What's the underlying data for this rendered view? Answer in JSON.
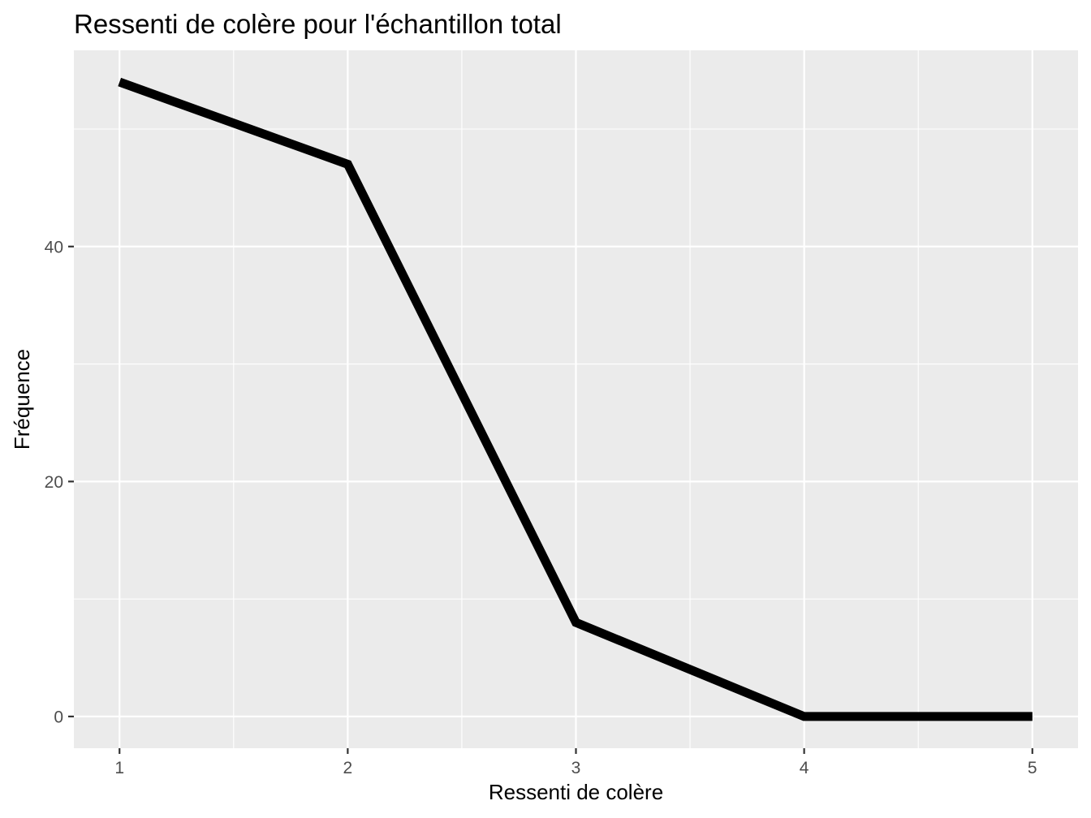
{
  "chart_data": {
    "type": "line",
    "title": "Ressenti de colère pour l'échantillon total",
    "xlabel": "Ressenti de colère",
    "ylabel": "Fréquence",
    "x": [
      1,
      2,
      3,
      4,
      5
    ],
    "series": [
      {
        "values": [
          54,
          47,
          8,
          0,
          0
        ],
        "color": "#000000"
      }
    ],
    "xlim": [
      0.8,
      5.2
    ],
    "ylim": [
      -2.7,
      56.7
    ],
    "x_ticks": [
      1,
      2,
      3,
      4,
      5
    ],
    "x_tick_labels": [
      "1",
      "2",
      "3",
      "4",
      "5"
    ],
    "x_minor_ticks": [
      1.5,
      2.5,
      3.5,
      4.5
    ],
    "y_ticks": [
      0,
      20,
      40
    ],
    "y_tick_labels": [
      "0",
      "20",
      "40"
    ],
    "y_minor_ticks": [
      10,
      30,
      50
    ],
    "grid": true,
    "legend": "none",
    "panel_background": "#ebebeb",
    "grid_color": "#ffffff",
    "tick_label_color": "#4d4d4d"
  }
}
